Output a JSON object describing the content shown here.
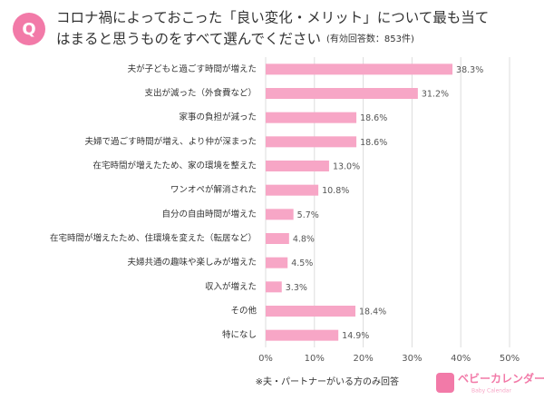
{
  "badge": "Q",
  "chart_data": {
    "type": "barh",
    "title": [
      "コロナ禍によっておこった「良い変化・メリット」について最も当て",
      "はまると思うものをすべて選んでください"
    ],
    "subtitle": "(有効回答数：853件)",
    "categories": [
      "夫が子どもと過ごす時間が増えた",
      "支出が減った（外食費など）",
      "家事の負担が減った",
      "夫婦で過ごす時間が増え、より仲が深まった",
      "在宅時間が増えたため、家の環境を整えた",
      "ワンオペが解消された",
      "自分の自由時間が増えた",
      "在宅時間が増えたため、住環境を変えた（転居など）",
      "夫婦共通の趣味や楽しみが増えた",
      "収入が増えた",
      "その他",
      "特になし"
    ],
    "values": [
      38.3,
      31.2,
      18.6,
      18.6,
      13.0,
      10.8,
      5.7,
      4.8,
      4.5,
      3.3,
      18.4,
      14.9
    ],
    "value_labels": [
      "38.3%",
      "31.2%",
      "18.6%",
      "18.6%",
      "13.0%",
      "10.8%",
      "5.7%",
      "4.8%",
      "4.5%",
      "3.3%",
      "18.4%",
      "14.9%"
    ],
    "color": "#f7a6c6",
    "xlim": [
      0,
      50
    ],
    "xticks": [
      {
        "value": 0,
        "label": "0%"
      },
      {
        "value": 10,
        "label": "10%"
      },
      {
        "value": 20,
        "label": "20%"
      },
      {
        "value": 30,
        "label": "30%"
      },
      {
        "value": 40,
        "label": "40%"
      },
      {
        "value": 50,
        "label": "50%"
      }
    ],
    "grid": true,
    "note": "※夫・パートナーがいる方のみ回答"
  },
  "logo": {
    "name": "ベビーカレンダー",
    "sub": "Baby Calendar"
  }
}
